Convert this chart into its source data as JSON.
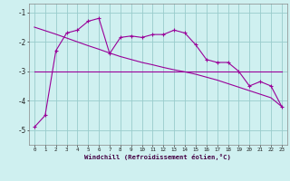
{
  "bg_color": "#cff0f0",
  "grid_color": "#99cccc",
  "line_color": "#990099",
  "x_vals": [
    0,
    1,
    2,
    3,
    4,
    5,
    6,
    7,
    8,
    9,
    10,
    11,
    12,
    13,
    14,
    15,
    16,
    17,
    18,
    19,
    20,
    21,
    22,
    23
  ],
  "y_main": [
    -4.9,
    -4.5,
    -2.3,
    -1.7,
    -1.6,
    -1.3,
    -1.2,
    -2.4,
    -1.85,
    -1.8,
    -1.85,
    -1.75,
    -1.75,
    -1.6,
    -1.7,
    -2.1,
    -2.6,
    -2.7,
    -2.7,
    -3.0,
    -3.5,
    -3.35,
    -3.5,
    -4.2
  ],
  "y_flat": [
    -3.0,
    -3.0,
    -3.0,
    -3.0,
    -3.0,
    -3.0,
    -3.0,
    -3.0,
    -3.0,
    -3.0,
    -3.0,
    -3.0,
    -3.0,
    -3.0,
    -3.0,
    -3.0,
    -3.0,
    -3.0,
    -3.0,
    -3.0,
    -3.0,
    -3.0,
    -3.0,
    -3.0
  ],
  "y_trend": [
    -1.5,
    -1.62,
    -1.74,
    -1.87,
    -2.0,
    -2.13,
    -2.25,
    -2.38,
    -2.5,
    -2.6,
    -2.7,
    -2.78,
    -2.87,
    -2.95,
    -3.02,
    -3.1,
    -3.2,
    -3.3,
    -3.42,
    -3.54,
    -3.66,
    -3.78,
    -3.9,
    -4.2
  ],
  "ylim": [
    -5.5,
    -0.7
  ],
  "yticks": [
    -5,
    -4,
    -3,
    -2,
    -1
  ],
  "xlim": [
    -0.5,
    23.5
  ],
  "xlabel": "Windchill (Refroidissement éolien,°C)"
}
